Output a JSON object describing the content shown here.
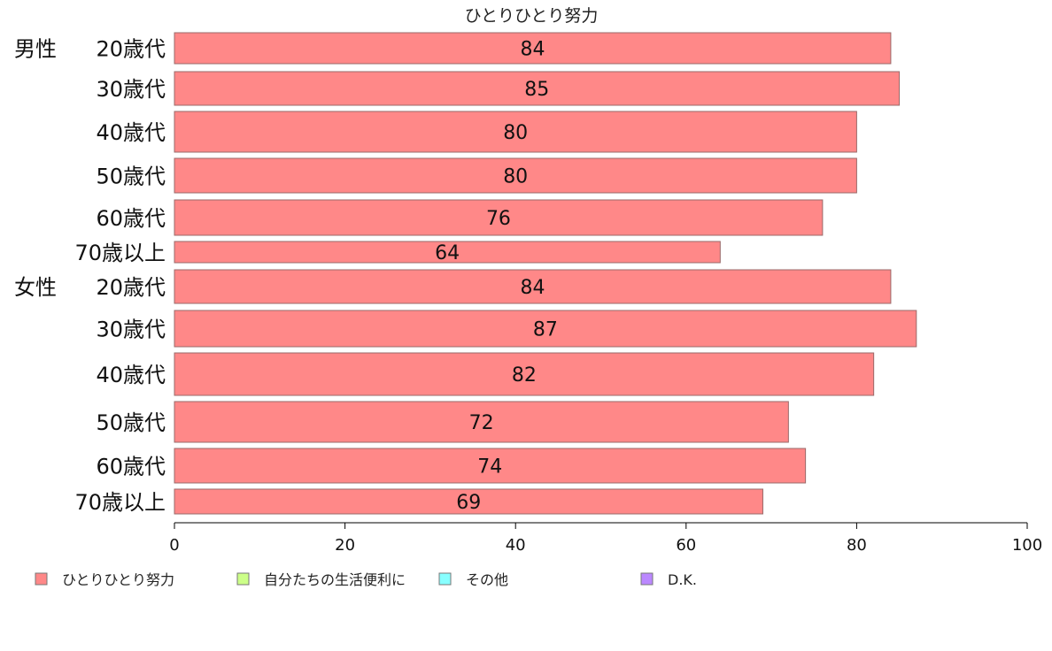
{
  "chart_data": {
    "type": "bar",
    "orientation": "horizontal",
    "title": "ひとりひとり努力",
    "categories": [
      {
        "group": "男性",
        "label": "20歳代"
      },
      {
        "group": "",
        "label": "30歳代"
      },
      {
        "group": "",
        "label": "40歳代"
      },
      {
        "group": "",
        "label": "50歳代"
      },
      {
        "group": "",
        "label": "60歳代"
      },
      {
        "group": "",
        "label": "70歳以上"
      },
      {
        "group": "女性",
        "label": "20歳代"
      },
      {
        "group": "",
        "label": "30歳代"
      },
      {
        "group": "",
        "label": "40歳代"
      },
      {
        "group": "",
        "label": "50歳代"
      },
      {
        "group": "",
        "label": "60歳代"
      },
      {
        "group": "",
        "label": "70歳以上"
      }
    ],
    "series": [
      {
        "name": "ひとりひとり努力",
        "color": "#ff8888",
        "values": [
          84,
          85,
          80,
          80,
          76,
          64,
          84,
          87,
          82,
          72,
          74,
          69
        ]
      }
    ],
    "xlim": [
      0,
      100
    ],
    "xticks": [
      0,
      20,
      40,
      60,
      80,
      100
    ],
    "grid": false,
    "legend": {
      "position": "bottom",
      "items": [
        {
          "label": "ひとりひとり努力",
          "color": "#ff8888"
        },
        {
          "label": "自分たちの生活便利に",
          "color": "#ccff88"
        },
        {
          "label": "その他",
          "color": "#88ffff"
        },
        {
          "label": "D.K.",
          "color": "#bb88ff"
        }
      ]
    }
  }
}
